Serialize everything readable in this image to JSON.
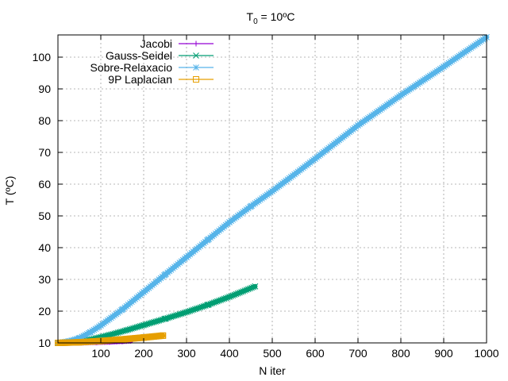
{
  "chart_data": {
    "type": "line",
    "title": "T",
    "title_subscript": "0",
    "title_suffix": " = 10ºC",
    "xlabel": "N iter",
    "ylabel": "T (ºC)",
    "xlim": [
      0,
      1000
    ],
    "ylim": [
      10,
      107
    ],
    "xticks": [
      100,
      200,
      300,
      400,
      500,
      600,
      700,
      800,
      900,
      1000
    ],
    "yticks": [
      10,
      20,
      30,
      40,
      50,
      60,
      70,
      80,
      90,
      100
    ],
    "grid": true,
    "legend_position": "top-left",
    "series": [
      {
        "name": "Jacobi",
        "color": "#9400d3",
        "marker": "plus",
        "x": [
          0,
          30,
          60,
          90,
          120,
          150,
          170
        ],
        "y": [
          10,
          10.02,
          10.08,
          10.18,
          10.32,
          10.5,
          10.65
        ]
      },
      {
        "name": "Gauss-Seidel",
        "color": "#009e73",
        "marker": "cross",
        "x": [
          0,
          40,
          80,
          120,
          160,
          200,
          250,
          300,
          350,
          400,
          460
        ],
        "y": [
          10,
          10.3,
          11.2,
          12.5,
          14,
          15.6,
          17.6,
          19.7,
          22,
          24.5,
          27.8
        ]
      },
      {
        "name": "Sobre-Relaxacio",
        "color": "#56b4e9",
        "marker": "star",
        "x": [
          0,
          25,
          50,
          75,
          100,
          150,
          200,
          250,
          300,
          350,
          400,
          450,
          500,
          600,
          700,
          800,
          900,
          1000
        ],
        "y": [
          10,
          10.5,
          11.5,
          13.3,
          15.5,
          20.5,
          26,
          31.5,
          37,
          42.5,
          48,
          53,
          57.8,
          68,
          78.5,
          88,
          97,
          106.3
        ]
      },
      {
        "name": "9P Laplacian",
        "color": "#e69f00",
        "marker": "square",
        "x": [
          0,
          50,
          100,
          150,
          200,
          245
        ],
        "y": [
          10,
          10.2,
          10.6,
          11.1,
          11.7,
          12.3
        ]
      }
    ]
  }
}
